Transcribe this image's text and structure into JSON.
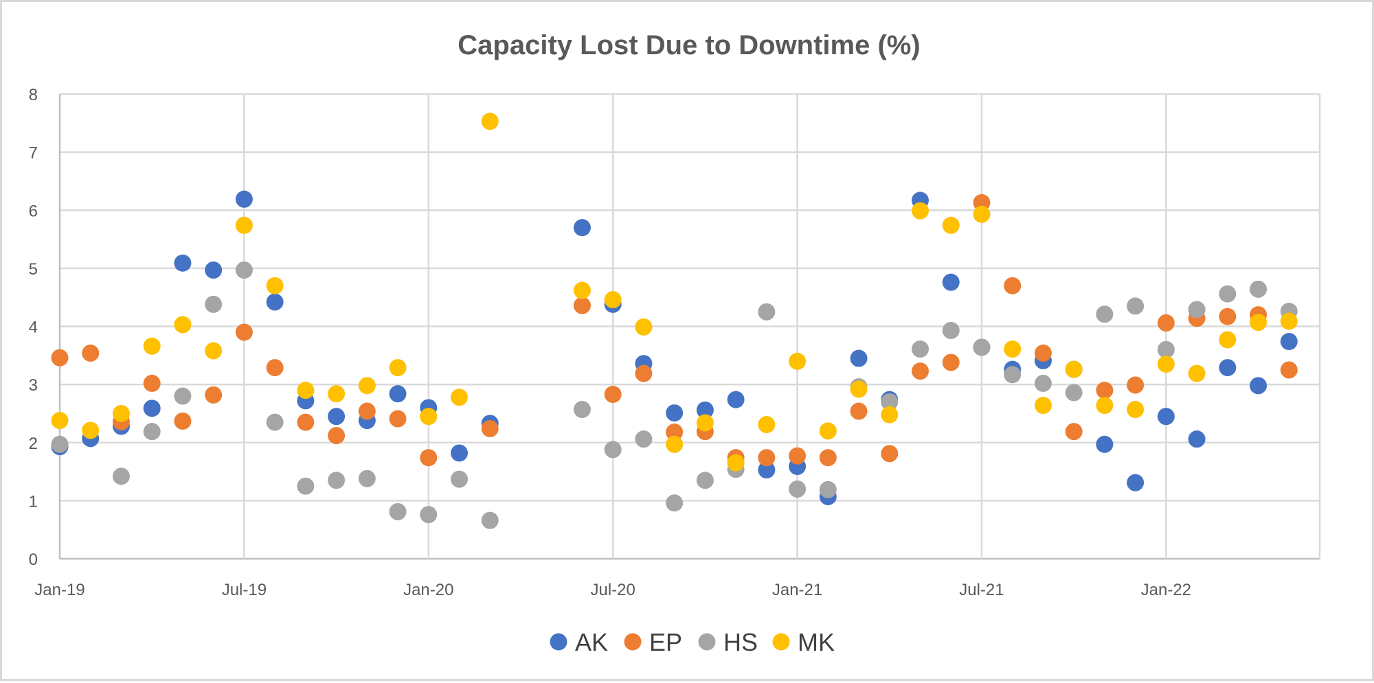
{
  "chart_data": {
    "type": "scatter",
    "title": "Capacity Lost Due to Downtime (%)",
    "xlabel": "",
    "ylabel": "",
    "ylim": [
      0,
      8
    ],
    "yticks": [
      "0",
      "1",
      "2",
      "3",
      "4",
      "5",
      "6",
      "7",
      "8"
    ],
    "xlim": [
      "2019-01",
      "2022-06"
    ],
    "xticks": [
      {
        "label": "Jan-19",
        "date": "2019-01"
      },
      {
        "label": "Jul-19",
        "date": "2019-07"
      },
      {
        "label": "Jan-20",
        "date": "2020-01"
      },
      {
        "label": "Jul-20",
        "date": "2020-07"
      },
      {
        "label": "Jan-21",
        "date": "2021-01"
      },
      {
        "label": "Jul-21",
        "date": "2021-07"
      },
      {
        "label": "Jan-22",
        "date": "2022-01"
      }
    ],
    "grid": true,
    "legend_position": "bottom",
    "x": [
      "2019-01",
      "2019-02",
      "2019-03",
      "2019-04",
      "2019-05",
      "2019-06",
      "2019-07",
      "2019-08",
      "2019-09",
      "2019-10",
      "2019-11",
      "2019-12",
      "2020-01",
      "2020-02",
      "2020-03",
      "2020-04",
      "2020-05",
      "2020-06",
      "2020-07",
      "2020-08",
      "2020-09",
      "2020-10",
      "2020-11",
      "2020-12",
      "2021-01",
      "2021-02",
      "2021-03",
      "2021-04",
      "2021-05",
      "2021-06",
      "2021-07",
      "2021-08",
      "2021-09",
      "2021-10",
      "2021-11",
      "2021-12",
      "2022-01",
      "2022-02",
      "2022-03",
      "2022-04",
      "2022-05",
      "2022-06"
    ],
    "series": [
      {
        "name": "AK",
        "color": "#4472C4",
        "values": [
          1.93,
          2.07,
          2.28,
          2.59,
          5.09,
          4.97,
          6.19,
          4.42,
          2.72,
          2.45,
          2.38,
          2.84,
          2.6,
          1.82,
          2.33,
          null,
          null,
          5.7,
          4.38,
          3.36,
          2.51,
          2.56,
          2.74,
          1.53,
          1.59,
          1.07,
          3.45,
          2.74,
          6.17,
          4.76,
          3.64,
          3.26,
          3.41,
          3.26,
          1.97,
          1.31,
          2.45,
          2.06,
          3.29,
          2.98,
          3.74,
          null
        ]
      },
      {
        "name": "EP",
        "color": "#ED7D31",
        "values": [
          3.46,
          3.54,
          2.36,
          3.02,
          2.37,
          2.82,
          3.9,
          3.29,
          2.35,
          2.12,
          2.54,
          2.41,
          1.74,
          null,
          2.24,
          null,
          null,
          4.36,
          2.83,
          3.19,
          2.18,
          2.19,
          1.74,
          1.74,
          1.77,
          1.74,
          2.54,
          1.81,
          3.23,
          3.38,
          6.13,
          4.7,
          3.54,
          2.19,
          2.9,
          2.99,
          4.06,
          4.14,
          4.17,
          4.2,
          3.25,
          null
        ]
      },
      {
        "name": "HS",
        "color": "#A5A5A5",
        "values": [
          1.97,
          null,
          1.42,
          2.19,
          2.8,
          4.38,
          4.97,
          2.35,
          1.25,
          1.35,
          1.38,
          0.81,
          0.76,
          1.37,
          0.66,
          null,
          null,
          2.57,
          1.88,
          2.06,
          0.96,
          1.35,
          1.54,
          4.25,
          1.2,
          1.19,
          2.96,
          2.7,
          3.61,
          3.93,
          3.64,
          3.17,
          3.02,
          2.86,
          4.21,
          4.35,
          3.6,
          4.29,
          4.56,
          4.64,
          4.26,
          null
        ]
      },
      {
        "name": "MK",
        "color": "#FFC000",
        "values": [
          2.38,
          2.21,
          2.5,
          3.66,
          4.03,
          3.58,
          5.74,
          4.7,
          2.9,
          2.84,
          2.98,
          3.29,
          2.45,
          2.78,
          7.53,
          null,
          null,
          4.62,
          4.46,
          3.99,
          1.97,
          2.34,
          1.65,
          2.31,
          3.4,
          2.2,
          2.92,
          2.48,
          5.99,
          5.74,
          5.93,
          3.61,
          2.64,
          3.26,
          2.64,
          2.57,
          3.35,
          3.19,
          3.77,
          4.07,
          4.09,
          null
        ]
      }
    ]
  }
}
